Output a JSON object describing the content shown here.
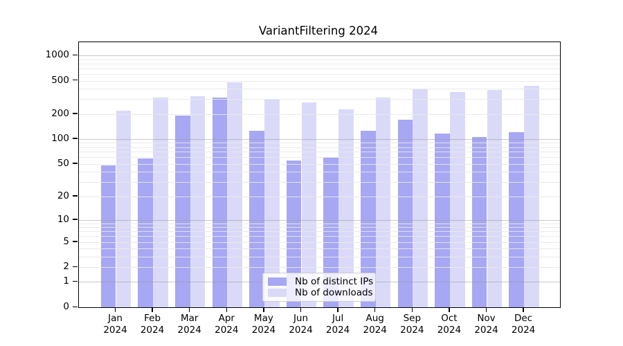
{
  "title": "VariantFiltering 2024",
  "colors": {
    "distinct_ips": "#a7a7f3",
    "downloads": "#dadaf8",
    "axis": "#000000",
    "grid_major": "#9a9a9a",
    "grid_minor": "#e8e8e8"
  },
  "chart_data": {
    "type": "bar",
    "title": "VariantFiltering 2024",
    "categories": [
      "Jan 2024",
      "Feb 2024",
      "Mar 2024",
      "Apr 2024",
      "May 2024",
      "Jun 2024",
      "Jul 2024",
      "Aug 2024",
      "Sep 2024",
      "Oct 2024",
      "Nov 2024",
      "Dec 2024"
    ],
    "series": [
      {
        "name": "Nb of distinct IPs",
        "color": "#a7a7f3",
        "values": [
          48,
          58,
          190,
          315,
          125,
          55,
          60,
          126,
          171,
          116,
          106,
          122
        ]
      },
      {
        "name": "Nb of downloads",
        "color": "#dadaf8",
        "values": [
          220,
          313,
          327,
          474,
          300,
          276,
          225,
          313,
          392,
          363,
          385,
          436
        ]
      }
    ],
    "yscale": "log10(value+1)",
    "yticks": [
      0,
      1,
      2,
      5,
      10,
      20,
      50,
      100,
      200,
      500,
      1000
    ],
    "ylim": [
      0,
      1450
    ],
    "xlabel": "",
    "ylabel": "",
    "grid": "both",
    "legend_position": "lower center"
  }
}
